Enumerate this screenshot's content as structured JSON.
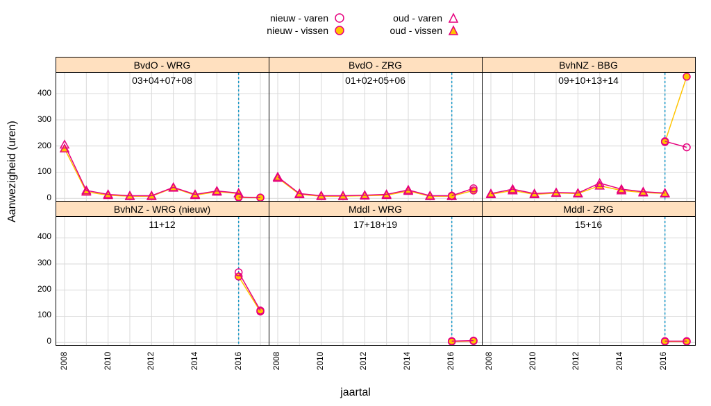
{
  "axis": {
    "y_label": "Aanwezigheid (uren)",
    "x_label": "jaartal",
    "ylim": [
      -10,
      480
    ],
    "y_ticks": [
      0,
      100,
      200,
      300,
      400
    ],
    "x_years": [
      2008,
      2009,
      2010,
      2011,
      2012,
      2013,
      2014,
      2015,
      2016,
      2017
    ],
    "x_tick_labels": [
      2008,
      2010,
      2012,
      2014,
      2016
    ],
    "vline_year": 2016
  },
  "colors": {
    "hollow_stroke": "#e6007e",
    "filled_fill": "#ffc400",
    "grid": "#d9d9d9",
    "strip_bg": "#ffe0bf",
    "vline": "#1f9bc9",
    "bg": "#ffffff",
    "text": "#000000"
  },
  "legend": [
    {
      "label": "nieuw - varen",
      "shape": "circle",
      "style": "hollow"
    },
    {
      "label": "nieuw - vissen",
      "shape": "circle",
      "style": "filled"
    },
    {
      "label": "oud - varen",
      "shape": "triangle",
      "style": "hollow"
    },
    {
      "label": "oud - vissen",
      "shape": "triangle",
      "style": "filled"
    }
  ],
  "layout": {
    "panel_plot_height": 185,
    "panel_plot_width": 306,
    "strip_height": 22
  },
  "panels": [
    {
      "title": "BvdO - WRG",
      "sublabel": "03+04+07+08",
      "series": [
        {
          "shape": "triangle",
          "style": "filled",
          "data": [
            [
              2008,
              190
            ],
            [
              2009,
              25
            ],
            [
              2010,
              12
            ],
            [
              2011,
              8
            ],
            [
              2012,
              8
            ],
            [
              2013,
              40
            ],
            [
              2014,
              12
            ],
            [
              2015,
              25
            ],
            [
              2016,
              18
            ]
          ]
        },
        {
          "shape": "triangle",
          "style": "hollow",
          "data": [
            [
              2008,
              205
            ],
            [
              2009,
              30
            ],
            [
              2010,
              15
            ],
            [
              2011,
              10
            ],
            [
              2012,
              10
            ],
            [
              2013,
              42
            ],
            [
              2014,
              15
            ],
            [
              2015,
              28
            ],
            [
              2016,
              20
            ]
          ]
        },
        {
          "shape": "circle",
          "style": "filled",
          "data": [
            [
              2016,
              3
            ],
            [
              2017,
              2
            ]
          ]
        },
        {
          "shape": "circle",
          "style": "hollow",
          "data": [
            [
              2016,
              5
            ],
            [
              2017,
              3
            ]
          ]
        }
      ]
    },
    {
      "title": "BvdO - ZRG",
      "sublabel": "01+02+05+06",
      "series": [
        {
          "shape": "triangle",
          "style": "filled",
          "data": [
            [
              2008,
              78
            ],
            [
              2009,
              15
            ],
            [
              2010,
              8
            ],
            [
              2011,
              8
            ],
            [
              2012,
              10
            ],
            [
              2013,
              12
            ],
            [
              2014,
              28
            ],
            [
              2015,
              8
            ],
            [
              2016,
              8
            ]
          ]
        },
        {
          "shape": "triangle",
          "style": "hollow",
          "data": [
            [
              2008,
              82
            ],
            [
              2009,
              18
            ],
            [
              2010,
              10
            ],
            [
              2011,
              10
            ],
            [
              2012,
              12
            ],
            [
              2013,
              15
            ],
            [
              2014,
              32
            ],
            [
              2015,
              10
            ],
            [
              2016,
              10
            ]
          ]
        },
        {
          "shape": "circle",
          "style": "filled",
          "data": [
            [
              2016,
              8
            ],
            [
              2017,
              30
            ]
          ]
        },
        {
          "shape": "circle",
          "style": "hollow",
          "data": [
            [
              2016,
              10
            ],
            [
              2017,
              38
            ]
          ]
        }
      ]
    },
    {
      "title": "BvhNZ - BBG",
      "sublabel": "09+10+13+14",
      "series": [
        {
          "shape": "triangle",
          "style": "filled",
          "data": [
            [
              2008,
              15
            ],
            [
              2009,
              30
            ],
            [
              2010,
              15
            ],
            [
              2011,
              20
            ],
            [
              2012,
              18
            ],
            [
              2013,
              48
            ],
            [
              2014,
              30
            ],
            [
              2015,
              22
            ],
            [
              2016,
              18
            ]
          ]
        },
        {
          "shape": "triangle",
          "style": "hollow",
          "data": [
            [
              2008,
              18
            ],
            [
              2009,
              35
            ],
            [
              2010,
              18
            ],
            [
              2011,
              22
            ],
            [
              2012,
              20
            ],
            [
              2013,
              58
            ],
            [
              2014,
              35
            ],
            [
              2015,
              25
            ],
            [
              2016,
              20
            ]
          ]
        },
        {
          "shape": "circle",
          "style": "filled",
          "data": [
            [
              2016,
              215
            ],
            [
              2017,
              465
            ]
          ]
        },
        {
          "shape": "circle",
          "style": "hollow",
          "data": [
            [
              2016,
              218
            ],
            [
              2017,
              195
            ]
          ]
        }
      ]
    },
    {
      "title": "BvhNZ - WRG (nieuw)",
      "sublabel": "11+12",
      "series": [
        {
          "shape": "circle",
          "style": "filled",
          "data": [
            [
              2016,
              252
            ],
            [
              2017,
              118
            ]
          ]
        },
        {
          "shape": "circle",
          "style": "hollow",
          "data": [
            [
              2016,
              268
            ],
            [
              2017,
              122
            ]
          ]
        }
      ]
    },
    {
      "title": "Mddl - WRG",
      "sublabel": "17+18+19",
      "series": [
        {
          "shape": "circle",
          "style": "filled",
          "data": [
            [
              2016,
              3
            ],
            [
              2017,
              5
            ]
          ]
        },
        {
          "shape": "circle",
          "style": "hollow",
          "data": [
            [
              2016,
              5
            ],
            [
              2017,
              7
            ]
          ]
        }
      ]
    },
    {
      "title": "Mddl - ZRG",
      "sublabel": "15+16",
      "series": [
        {
          "shape": "circle",
          "style": "filled",
          "data": [
            [
              2016,
              3
            ],
            [
              2017,
              3
            ]
          ]
        },
        {
          "shape": "circle",
          "style": "hollow",
          "data": [
            [
              2016,
              5
            ],
            [
              2017,
              5
            ]
          ]
        }
      ]
    }
  ]
}
